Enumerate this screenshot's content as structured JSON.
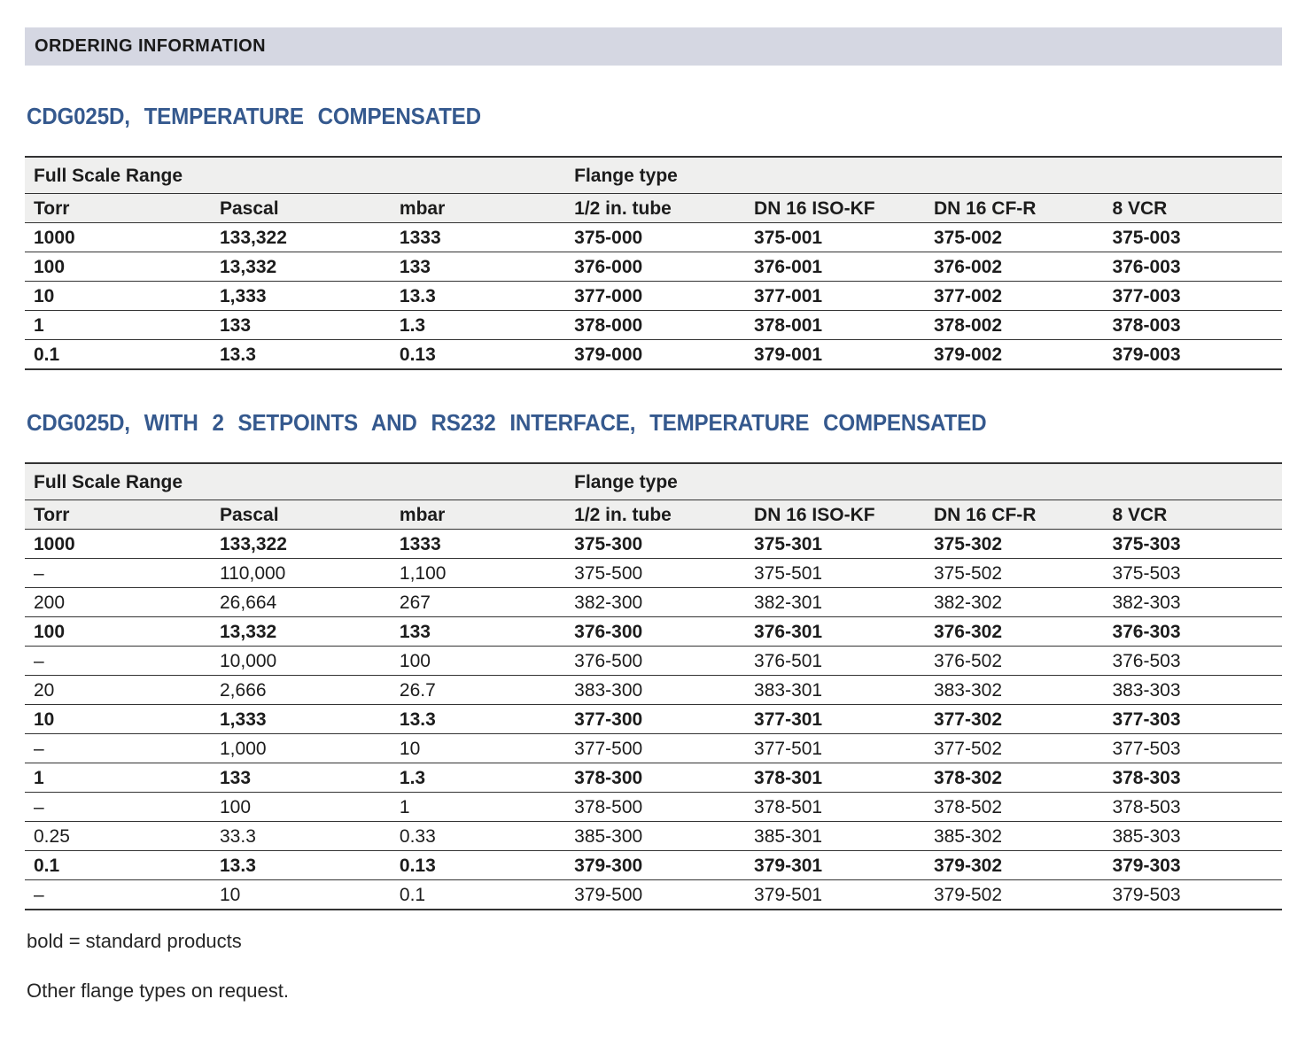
{
  "page": {
    "header_bar_title": "ORDERING INFORMATION",
    "footnote_bold": "bold = standard products",
    "footnote_flange": "Other flange types on request."
  },
  "colors": {
    "header_bar_bg": "#d5d7e2",
    "table_header_bg": "#efefee",
    "heading_blue": "#35598e",
    "border_color": "#333333",
    "text_color": "#1c1c1c"
  },
  "sections": [
    {
      "title": "CDG025D, TEMPERATURE COMPENSATED",
      "table": {
        "group_headers": [
          "Full Scale Range",
          "Flange type"
        ],
        "columns": [
          "Torr",
          "Pascal",
          "mbar",
          "1/2 in. tube",
          "DN 16 ISO-KF",
          "DN 16 CF-R",
          "8 VCR"
        ],
        "rows": [
          {
            "bold": true,
            "cells": [
              "1000",
              "133,322",
              "1333",
              "375-000",
              "375-001",
              "375-002",
              "375-003"
            ]
          },
          {
            "bold": true,
            "cells": [
              "100",
              "13,332",
              "133",
              "376-000",
              "376-001",
              "376-002",
              "376-003"
            ]
          },
          {
            "bold": true,
            "cells": [
              "10",
              "1,333",
              "13.3",
              "377-000",
              "377-001",
              "377-002",
              "377-003"
            ]
          },
          {
            "bold": true,
            "cells": [
              "1",
              "133",
              "1.3",
              "378-000",
              "378-001",
              "378-002",
              "378-003"
            ]
          },
          {
            "bold": true,
            "cells": [
              "0.1",
              "13.3",
              "0.13",
              "379-000",
              "379-001",
              "379-002",
              "379-003"
            ]
          }
        ]
      }
    },
    {
      "title": "CDG025D, WITH 2 SETPOINTS AND RS232 INTERFACE, TEMPERATURE COMPENSATED",
      "table": {
        "group_headers": [
          "Full Scale Range",
          "Flange type"
        ],
        "columns": [
          "Torr",
          "Pascal",
          "mbar",
          "1/2 in. tube",
          "DN 16 ISO-KF",
          "DN 16 CF-R",
          "8 VCR"
        ],
        "rows": [
          {
            "bold": true,
            "cells": [
              "1000",
              "133,322",
              "1333",
              "375-300",
              "375-301",
              "375-302",
              "375-303"
            ]
          },
          {
            "bold": false,
            "cells": [
              "–",
              "110,000",
              "1,100",
              "375-500",
              "375-501",
              "375-502",
              "375-503"
            ]
          },
          {
            "bold": false,
            "cells": [
              "200",
              "26,664",
              "267",
              "382-300",
              "382-301",
              "382-302",
              "382-303"
            ]
          },
          {
            "bold": true,
            "cells": [
              "100",
              "13,332",
              "133",
              "376-300",
              "376-301",
              "376-302",
              "376-303"
            ]
          },
          {
            "bold": false,
            "cells": [
              "–",
              "10,000",
              "100",
              "376-500",
              "376-501",
              "376-502",
              "376-503"
            ]
          },
          {
            "bold": false,
            "cells": [
              "20",
              "2,666",
              "26.7",
              "383-300",
              "383-301",
              "383-302",
              "383-303"
            ]
          },
          {
            "bold": true,
            "cells": [
              "10",
              "1,333",
              "13.3",
              "377-300",
              "377-301",
              "377-302",
              "377-303"
            ]
          },
          {
            "bold": false,
            "cells": [
              "–",
              "1,000",
              "10",
              "377-500",
              "377-501",
              "377-502",
              "377-503"
            ]
          },
          {
            "bold": true,
            "cells": [
              "1",
              "133",
              "1.3",
              "378-300",
              "378-301",
              "378-302",
              "378-303"
            ]
          },
          {
            "bold": false,
            "cells": [
              "–",
              "100",
              "1",
              "378-500",
              "378-501",
              "378-502",
              "378-503"
            ]
          },
          {
            "bold": false,
            "cells": [
              "0.25",
              "33.3",
              "0.33",
              "385-300",
              "385-301",
              "385-302",
              "385-303"
            ]
          },
          {
            "bold": true,
            "cells": [
              "0.1",
              "13.3",
              "0.13",
              "379-300",
              "379-301",
              "379-302",
              "379-303"
            ]
          },
          {
            "bold": false,
            "cells": [
              "–",
              "10",
              "0.1",
              "379-500",
              "379-501",
              "379-502",
              "379-503"
            ]
          }
        ]
      }
    }
  ]
}
